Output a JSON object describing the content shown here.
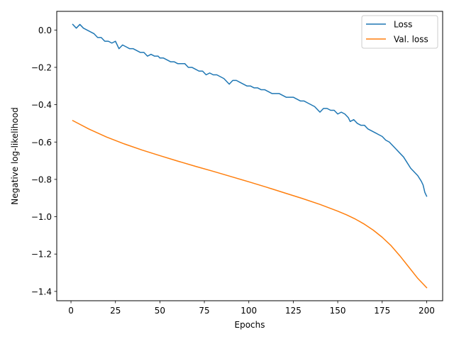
{
  "chart_data": {
    "type": "line",
    "xlabel": "Epochs",
    "ylabel": "Negative log-likelihood",
    "xlim": [
      -8,
      209
    ],
    "ylim": [
      -1.45,
      0.1
    ],
    "xticks": [
      0,
      25,
      50,
      75,
      100,
      125,
      150,
      175,
      200
    ],
    "yticks": [
      0.0,
      -0.2,
      -0.4,
      -0.6,
      -0.8,
      -1.0,
      -1.2,
      -1.4
    ],
    "xtick_labels": [
      "0",
      "25",
      "50",
      "75",
      "100",
      "125",
      "150",
      "175",
      "200"
    ],
    "ytick_labels": [
      "0.0",
      "−0.2",
      "−0.4",
      "−0.6",
      "−0.8",
      "−1.0",
      "−1.2",
      "−1.4"
    ],
    "grid": false,
    "legend_position": "top-right",
    "series": [
      {
        "name": "Loss",
        "color": "#1f77b4",
        "x": [
          1,
          3,
          5,
          7,
          9,
          11,
          13,
          15,
          17,
          19,
          21,
          23,
          25,
          27,
          28,
          29,
          31,
          33,
          35,
          37,
          39,
          41,
          43,
          45,
          47,
          49,
          50,
          52,
          54,
          56,
          58,
          60,
          62,
          64,
          66,
          68,
          70,
          72,
          74,
          76,
          78,
          80,
          82,
          84,
          86,
          88,
          89,
          91,
          93,
          95,
          97,
          99,
          101,
          103,
          105,
          107,
          109,
          111,
          113,
          115,
          117,
          119,
          121,
          123,
          125,
          127,
          129,
          131,
          133,
          135,
          137,
          139,
          140,
          142,
          144,
          146,
          148,
          150,
          152,
          154,
          156,
          157,
          159,
          161,
          163,
          165,
          167,
          169,
          171,
          173,
          175,
          177,
          179,
          181,
          183,
          185,
          187,
          189,
          191,
          193,
          195,
          197,
          198,
          199,
          200
        ],
        "values": [
          0.03,
          0.01,
          0.03,
          0.01,
          0.0,
          -0.01,
          -0.02,
          -0.04,
          -0.04,
          -0.06,
          -0.06,
          -0.07,
          -0.06,
          -0.1,
          -0.09,
          -0.08,
          -0.09,
          -0.1,
          -0.1,
          -0.11,
          -0.12,
          -0.12,
          -0.14,
          -0.13,
          -0.14,
          -0.14,
          -0.15,
          -0.15,
          -0.16,
          -0.17,
          -0.17,
          -0.18,
          -0.18,
          -0.18,
          -0.2,
          -0.2,
          -0.21,
          -0.22,
          -0.22,
          -0.24,
          -0.23,
          -0.24,
          -0.24,
          -0.25,
          -0.26,
          -0.28,
          -0.29,
          -0.27,
          -0.27,
          -0.28,
          -0.29,
          -0.3,
          -0.3,
          -0.31,
          -0.31,
          -0.32,
          -0.32,
          -0.33,
          -0.34,
          -0.34,
          -0.34,
          -0.35,
          -0.36,
          -0.36,
          -0.36,
          -0.37,
          -0.38,
          -0.38,
          -0.39,
          -0.4,
          -0.41,
          -0.43,
          -0.44,
          -0.42,
          -0.42,
          -0.43,
          -0.43,
          -0.45,
          -0.44,
          -0.45,
          -0.47,
          -0.49,
          -0.48,
          -0.5,
          -0.51,
          -0.51,
          -0.53,
          -0.54,
          -0.55,
          -0.56,
          -0.57,
          -0.59,
          -0.6,
          -0.62,
          -0.64,
          -0.66,
          -0.68,
          -0.71,
          -0.74,
          -0.76,
          -0.78,
          -0.81,
          -0.83,
          -0.87,
          -0.89
        ]
      },
      {
        "name": "Val. loss",
        "color": "#ff7f0e",
        "x": [
          1,
          10,
          20,
          30,
          40,
          50,
          60,
          70,
          80,
          90,
          100,
          110,
          120,
          130,
          140,
          150,
          155,
          160,
          165,
          170,
          175,
          180,
          185,
          190,
          195,
          200
        ],
        "values": [
          -0.485,
          -0.53,
          -0.573,
          -0.61,
          -0.643,
          -0.673,
          -0.702,
          -0.73,
          -0.757,
          -0.785,
          -0.813,
          -0.842,
          -0.872,
          -0.902,
          -0.934,
          -0.97,
          -0.99,
          -1.013,
          -1.04,
          -1.072,
          -1.11,
          -1.155,
          -1.21,
          -1.27,
          -1.33,
          -1.38
        ]
      }
    ]
  }
}
